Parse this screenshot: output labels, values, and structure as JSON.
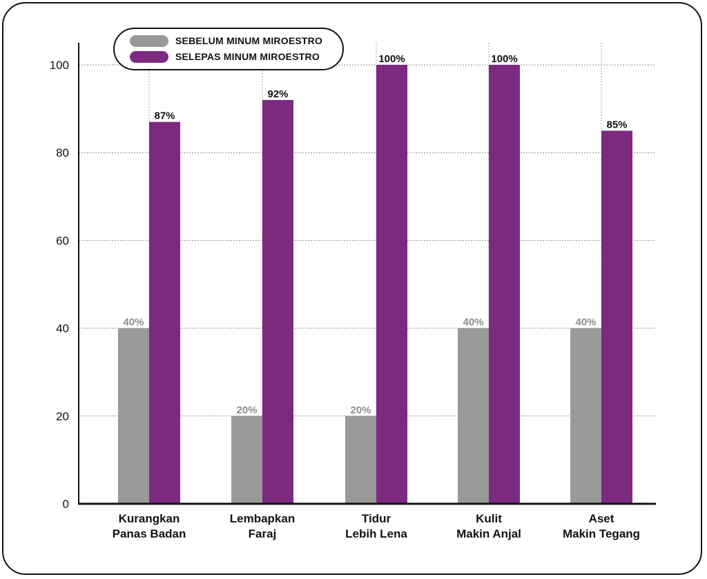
{
  "chart_data": {
    "type": "bar",
    "categories": [
      [
        "Kurangkan",
        "Panas Badan"
      ],
      [
        "Lembapkan",
        "Faraj"
      ],
      [
        "Tidur",
        "Lebih Lena"
      ],
      [
        "Kulit",
        "Makin Anjal"
      ],
      [
        "Aset",
        "Makin Tegang"
      ]
    ],
    "series": [
      {
        "name": "SEBELUM MINUM MIROESTRO",
        "values": [
          40,
          20,
          20,
          40,
          40
        ],
        "labels": [
          "40%",
          "20%",
          "20%",
          "40%",
          "40%"
        ],
        "color": "#999999",
        "label_color": "#8c8c8c"
      },
      {
        "name": "SELEPAS MINUM MIROESTRO",
        "values": [
          87,
          92,
          100,
          100,
          85
        ],
        "labels": [
          "87%",
          "92%",
          "100%",
          "100%",
          "85%"
        ],
        "color": "#7b2a80",
        "label_color": "#111111"
      }
    ],
    "ylim": [
      0,
      100
    ],
    "yticks": [
      "0",
      "20",
      "40",
      "60",
      "80",
      "100"
    ],
    "grid": true,
    "legend_position": "top-left"
  }
}
